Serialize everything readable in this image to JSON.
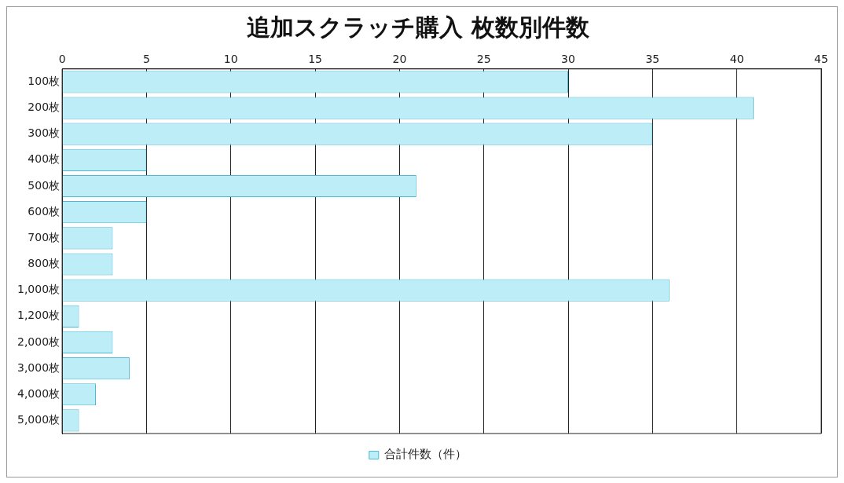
{
  "chart_data": {
    "type": "bar",
    "title": "追加スクラッチ購入 枚数別件数",
    "orientation": "horizontal",
    "categories": [
      "100枚",
      "200枚",
      "300枚",
      "400枚",
      "500枚",
      "600枚",
      "700枚",
      "800枚",
      "1,000枚",
      "1,200枚",
      "2,000枚",
      "3,000枚",
      "4,000枚",
      "5,000枚"
    ],
    "series": [
      {
        "name": "合計件数（件）",
        "color": "#bdeef8",
        "values": [
          30,
          41,
          35,
          5,
          21,
          5,
          3,
          3,
          36,
          1,
          3,
          4,
          2,
          1
        ]
      }
    ],
    "xlim": [
      0,
      45
    ],
    "xticks": [
      0,
      5,
      10,
      15,
      20,
      25,
      30,
      35,
      40,
      45
    ],
    "grid": "x",
    "legend": "bottom"
  }
}
